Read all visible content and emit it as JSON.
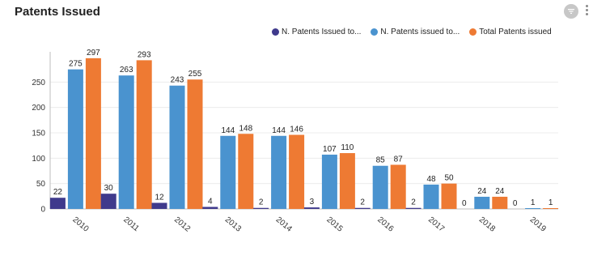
{
  "header": {
    "title": "Patents Issued",
    "filter_icon": "filter-icon",
    "more_icon": "more-vertical-icon"
  },
  "legend": [
    {
      "label": "N. Patents Issued to...",
      "color": "#3f3a8c"
    },
    {
      "label": "N. Patents issued to...",
      "color": "#4a93cf"
    },
    {
      "label": "Total Patents issued",
      "color": "#ee7a33"
    }
  ],
  "chart_data": {
    "type": "bar",
    "title": "",
    "xlabel": "",
    "ylabel": "",
    "ylim": [
      0,
      300
    ],
    "yticks": [
      0,
      50,
      100,
      150,
      200,
      250
    ],
    "grid": true,
    "legend_position": "top-right",
    "categories": [
      "2010",
      "2011",
      "2012",
      "2013",
      "2014",
      "2015",
      "2016",
      "2017",
      "2018",
      "2019"
    ],
    "series": [
      {
        "name": "N. Patents Issued to...",
        "color": "#3f3a8c",
        "values": [
          22,
          30,
          12,
          4,
          2,
          3,
          2,
          2,
          0,
          0
        ]
      },
      {
        "name": "N. Patents issued to...",
        "color": "#4a93cf",
        "values": [
          275,
          263,
          243,
          144,
          144,
          107,
          85,
          48,
          24,
          1
        ]
      },
      {
        "name": "Total Patents issued",
        "color": "#ee7a33",
        "values": [
          297,
          293,
          255,
          148,
          146,
          110,
          87,
          50,
          24,
          1
        ]
      }
    ]
  }
}
